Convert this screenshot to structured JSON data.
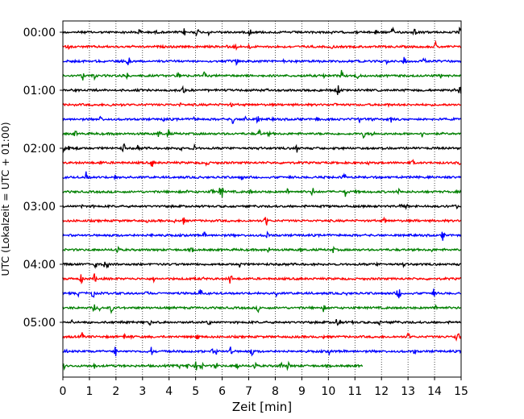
{
  "chart_data": {
    "type": "line",
    "xlabel": "Zeit  [min]",
    "ylabel": "UTC (Lokalzeit = UTC + 01:00)",
    "xlim": [
      0,
      15
    ],
    "x_ticks": [
      "0",
      "1",
      "2",
      "3",
      "4",
      "5",
      "6",
      "7",
      "8",
      "9",
      "10",
      "11",
      "12",
      "13",
      "14",
      "15"
    ],
    "y_ticks": [
      "00:00",
      "01:00",
      "02:00",
      "03:00",
      "04:00",
      "05:00"
    ],
    "grid": "vertical-dotted",
    "trace_interval_min": 15,
    "trace_colors": [
      "#000000",
      "#ff0000",
      "#0000ff",
      "#008000"
    ],
    "traces": [
      {
        "start": "00:00",
        "color": "#000000",
        "end_min": 15
      },
      {
        "start": "00:15",
        "color": "#ff0000",
        "end_min": 15
      },
      {
        "start": "00:30",
        "color": "#0000ff",
        "end_min": 15
      },
      {
        "start": "00:45",
        "color": "#008000",
        "end_min": 15
      },
      {
        "start": "01:00",
        "color": "#000000",
        "end_min": 15
      },
      {
        "start": "01:15",
        "color": "#ff0000",
        "end_min": 15
      },
      {
        "start": "01:30",
        "color": "#0000ff",
        "end_min": 15
      },
      {
        "start": "01:45",
        "color": "#008000",
        "end_min": 15
      },
      {
        "start": "02:00",
        "color": "#000000",
        "end_min": 15
      },
      {
        "start": "02:15",
        "color": "#ff0000",
        "end_min": 15
      },
      {
        "start": "02:30",
        "color": "#0000ff",
        "end_min": 15
      },
      {
        "start": "02:45",
        "color": "#008000",
        "end_min": 15
      },
      {
        "start": "03:00",
        "color": "#000000",
        "end_min": 15
      },
      {
        "start": "03:15",
        "color": "#ff0000",
        "end_min": 15
      },
      {
        "start": "03:30",
        "color": "#0000ff",
        "end_min": 15
      },
      {
        "start": "03:45",
        "color": "#008000",
        "end_min": 15
      },
      {
        "start": "04:00",
        "color": "#000000",
        "end_min": 15
      },
      {
        "start": "04:15",
        "color": "#ff0000",
        "end_min": 15
      },
      {
        "start": "04:30",
        "color": "#0000ff",
        "end_min": 15
      },
      {
        "start": "04:45",
        "color": "#008000",
        "end_min": 15
      },
      {
        "start": "05:00",
        "color": "#000000",
        "end_min": 15
      },
      {
        "start": "05:15",
        "color": "#ff0000",
        "end_min": 15
      },
      {
        "start": "05:30",
        "color": "#0000ff",
        "end_min": 15
      },
      {
        "start": "05:45",
        "color": "#008000",
        "end_min": 11.3
      }
    ]
  }
}
